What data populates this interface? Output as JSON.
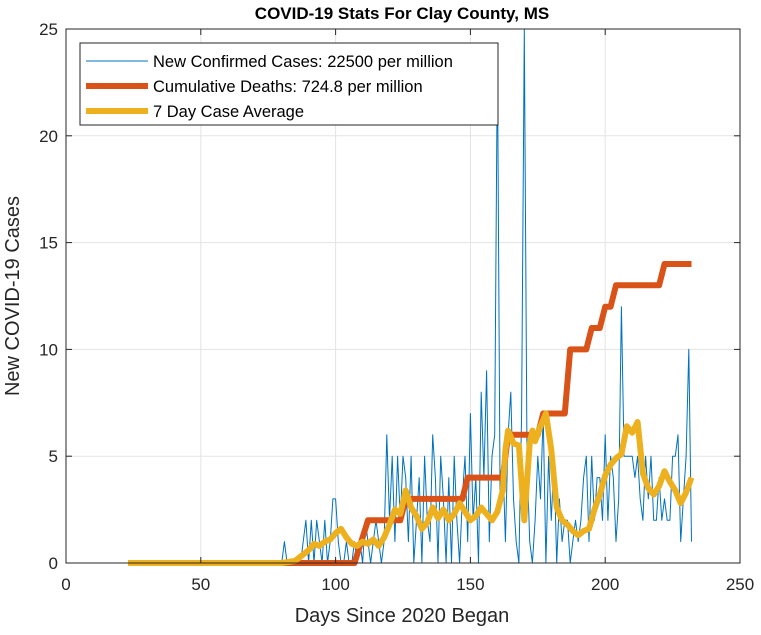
{
  "chart_data": {
    "type": "line",
    "title": "COVID-19 Stats For Clay County, MS",
    "xlabel": "Days Since 2020 Began",
    "ylabel": "New COVID-19 Cases",
    "xlim": [
      0,
      250
    ],
    "ylim": [
      0,
      25
    ],
    "xticks": [
      0,
      50,
      100,
      150,
      200,
      250
    ],
    "yticks": [
      0,
      5,
      10,
      15,
      20,
      25
    ],
    "xtick_labels": [
      "0",
      "50",
      "100",
      "150",
      "200",
      "250"
    ],
    "ytick_labels": [
      "0",
      "5",
      "10",
      "15",
      "20",
      "25"
    ],
    "grid": true,
    "legend_position": "top-left",
    "series": [
      {
        "name": "New Confirmed Cases: 22500 per million",
        "color": "#0072BD",
        "style": "thin",
        "x": [
          23,
          30,
          40,
          50,
          60,
          70,
          79,
          80,
          81,
          82,
          83,
          84,
          85,
          86,
          87,
          88,
          89,
          90,
          91,
          92,
          93,
          94,
          95,
          96,
          97,
          98,
          99,
          100,
          101,
          102,
          103,
          104,
          105,
          106,
          107,
          108,
          109,
          110,
          111,
          112,
          113,
          114,
          115,
          116,
          117,
          118,
          119,
          120,
          121,
          122,
          123,
          124,
          125,
          126,
          127,
          128,
          129,
          130,
          131,
          132,
          133,
          134,
          135,
          136,
          137,
          138,
          139,
          140,
          141,
          142,
          143,
          144,
          145,
          146,
          147,
          148,
          149,
          150,
          151,
          152,
          153,
          154,
          155,
          156,
          157,
          158,
          159,
          160,
          161,
          162,
          163,
          164,
          165,
          166,
          167,
          168,
          169,
          170,
          171,
          172,
          173,
          174,
          175,
          176,
          177,
          178,
          179,
          180,
          181,
          182,
          183,
          184,
          185,
          186,
          187,
          188,
          189,
          190,
          191,
          192,
          193,
          194,
          195,
          196,
          197,
          198,
          199,
          200,
          201,
          202,
          203,
          204,
          205,
          206,
          207,
          208,
          209,
          210,
          211,
          212,
          213,
          214,
          215,
          216,
          217,
          218,
          219,
          220,
          221,
          222,
          223,
          224,
          225,
          226,
          227,
          228,
          229,
          230,
          231,
          232
        ],
        "y": [
          0,
          0,
          0,
          0,
          0,
          0,
          0,
          0,
          1,
          0,
          0,
          0,
          0,
          0,
          0,
          1,
          2,
          0,
          2,
          0,
          2,
          1,
          0,
          2,
          0,
          1,
          3,
          3,
          1,
          0,
          0,
          1,
          0,
          0,
          1,
          0,
          1,
          0,
          2,
          1,
          0,
          1,
          2,
          1,
          0,
          1,
          6,
          2,
          5,
          1,
          5,
          2,
          5,
          4,
          1,
          5,
          0,
          2,
          4,
          0,
          5,
          2,
          1,
          6,
          4,
          0,
          5,
          3,
          0,
          4,
          0,
          5,
          2,
          0,
          3,
          5,
          1,
          7,
          2,
          4,
          0,
          8,
          4,
          9,
          1,
          5,
          6,
          24,
          3,
          5,
          1,
          6,
          8,
          3,
          1,
          0,
          7,
          25,
          5,
          1,
          0,
          2,
          5,
          3,
          7,
          0,
          5,
          2,
          5,
          0,
          3,
          1,
          2,
          2,
          0,
          1,
          2,
          1,
          2,
          4,
          5,
          1,
          5,
          2,
          4,
          4,
          2,
          6,
          2,
          5,
          4,
          1,
          3,
          12,
          5,
          5,
          5,
          5,
          4,
          5,
          3,
          2,
          5,
          3,
          5,
          2,
          2,
          4,
          2,
          3,
          2,
          2,
          5,
          5,
          6,
          1,
          3,
          5,
          10,
          1
        ],
        "values_note": ""
      },
      {
        "name": "Cumulative Deaths: 724.8 per million",
        "color": "#D95319",
        "style": "thick",
        "x": [
          23,
          107,
          112,
          113,
          124,
          126,
          147,
          149,
          162,
          164,
          175,
          177,
          185,
          187,
          193,
          195,
          198,
          200,
          202,
          204,
          220,
          222,
          232
        ],
        "y": [
          0,
          0,
          2,
          2,
          2,
          3,
          3,
          4,
          4,
          6,
          6,
          7,
          7,
          10,
          10,
          11,
          11,
          12,
          12,
          13,
          13,
          14,
          14
        ]
      },
      {
        "name": "7 Day Case Average",
        "color": "#EDB120",
        "style": "thick",
        "x": [
          23,
          30,
          40,
          50,
          60,
          70,
          80,
          85,
          88,
          90,
          92,
          94,
          96,
          98,
          100,
          102,
          104,
          106,
          108,
          110,
          112,
          114,
          116,
          118,
          120,
          122,
          124,
          126,
          128,
          130,
          132,
          134,
          136,
          138,
          140,
          142,
          144,
          146,
          148,
          150,
          152,
          154,
          156,
          158,
          160,
          162,
          163,
          164,
          166,
          168,
          170,
          172,
          173,
          174,
          176,
          178,
          180,
          182,
          184,
          186,
          188,
          190,
          192,
          194,
          196,
          198,
          200,
          202,
          204,
          206,
          208,
          210,
          212,
          214,
          216,
          218,
          220,
          222,
          224,
          226,
          228,
          230,
          232
        ],
        "y": [
          0,
          0,
          0,
          0,
          0,
          0,
          0,
          0.1,
          0.4,
          0.6,
          0.9,
          0.8,
          1.0,
          1.1,
          1.4,
          1.6,
          1.2,
          0.9,
          0.8,
          1.0,
          0.9,
          1.1,
          0.8,
          1.2,
          1.8,
          2.5,
          2.3,
          3.4,
          2.6,
          2.2,
          1.6,
          1.9,
          2.6,
          2.1,
          2.5,
          2.0,
          2.3,
          2.8,
          2.4,
          2.0,
          2.2,
          2.6,
          2.3,
          2.0,
          2.4,
          3.4,
          5.3,
          6.2,
          5.6,
          5.5,
          2.0,
          5.6,
          6.2,
          5.7,
          6.4,
          7.0,
          5.3,
          2.6,
          2.0,
          1.8,
          1.5,
          1.3,
          1.5,
          1.6,
          2.5,
          3.2,
          4.1,
          4.6,
          4.9,
          5.1,
          6.4,
          6.1,
          6.6,
          4.2,
          3.5,
          3.2,
          3.6,
          4.3,
          3.8,
          3.4,
          2.8,
          3.3,
          4.0
        ]
      }
    ]
  }
}
